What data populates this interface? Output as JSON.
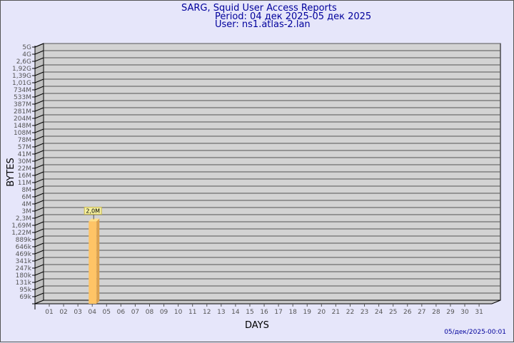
{
  "header": {
    "title": "SARG, Squid User Access Reports",
    "period": "Period: 04 дек 2025-05 дек 2025",
    "user": "User: ns1.atlas-2.lan"
  },
  "footer": {
    "timestamp": "05/дек/2025-00:01"
  },
  "chart_data": {
    "type": "bar",
    "title": "SARG, Squid User Access Reports",
    "xlabel": "DAYS",
    "ylabel": "BYTES",
    "y_scale": "log",
    "grid": true,
    "categories": [
      "01",
      "02",
      "03",
      "04",
      "05",
      "06",
      "07",
      "08",
      "09",
      "10",
      "11",
      "12",
      "13",
      "14",
      "15",
      "16",
      "17",
      "18",
      "19",
      "20",
      "21",
      "22",
      "23",
      "24",
      "25",
      "26",
      "27",
      "28",
      "29",
      "30",
      "31"
    ],
    "yticks": [
      "5G",
      "4G",
      "2,6G",
      "1,92G",
      "1,39G",
      "1,01G",
      "734M",
      "533M",
      "387M",
      "281M",
      "204M",
      "148M",
      "108M",
      "78M",
      "57M",
      "41M",
      "30M",
      "22M",
      "16M",
      "11M",
      "8M",
      "6M",
      "4M",
      "3M",
      "2,3M",
      "1,69M",
      "1,22M",
      "889k",
      "646k",
      "469k",
      "341k",
      "247k",
      "180k",
      "131k",
      "95k",
      "69k"
    ],
    "bars": [
      {
        "category": "04",
        "value_bytes": 2000000,
        "label": "2,0M"
      }
    ],
    "colors": {
      "bar_front": "#ffc466",
      "bar_side": "#dca14e",
      "bar_top": "#ffe08a",
      "wall": "#d3d3d3",
      "label_bg": "#f5f0a0"
    }
  }
}
